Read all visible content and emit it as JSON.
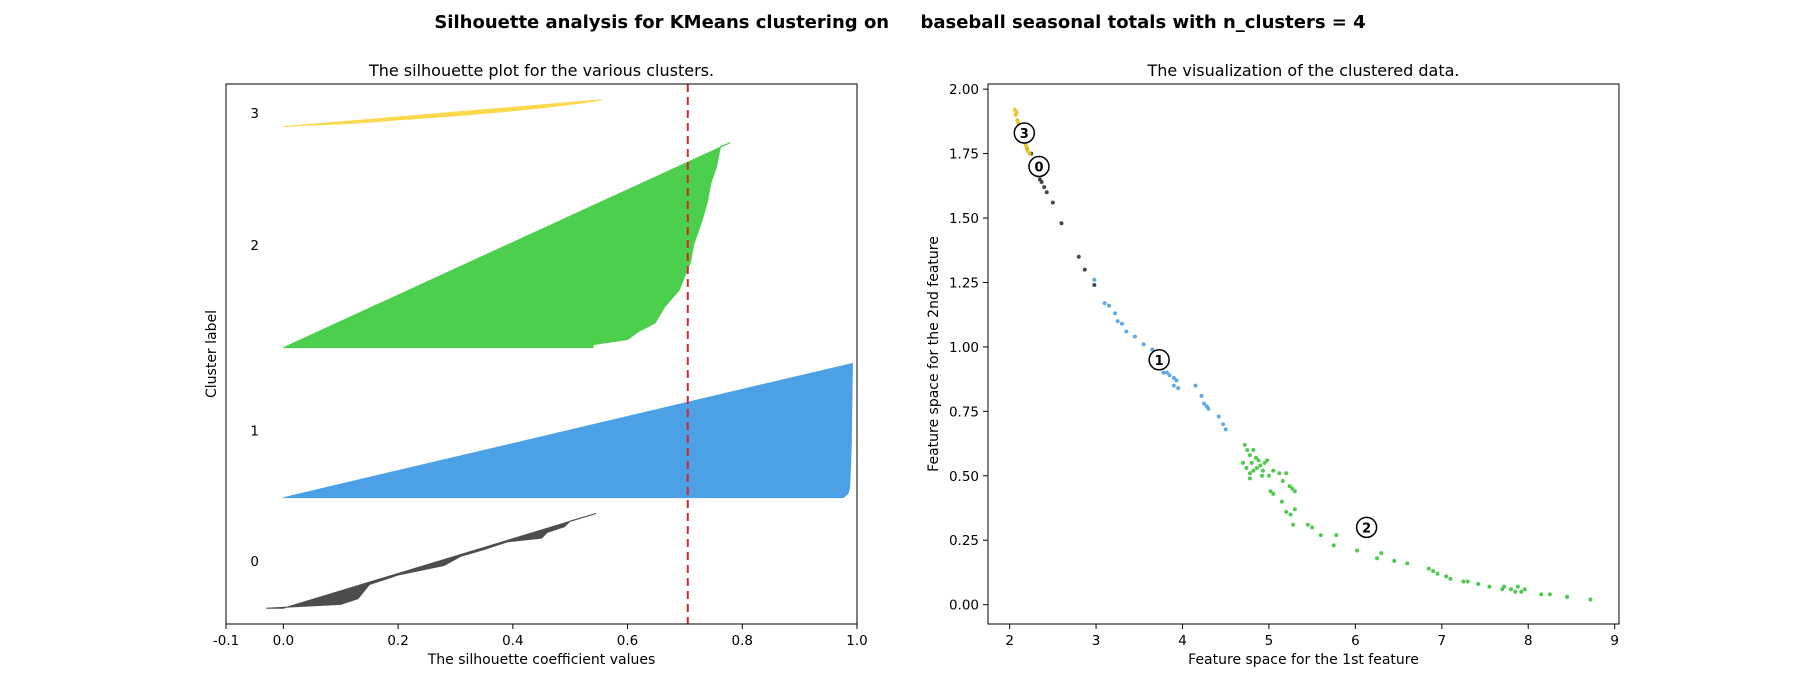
{
  "figure": {
    "suptitle": "Silhouette analysis for KMeans clustering on     baseball seasonal totals with n_clusters = 4"
  },
  "chart_data": [
    {
      "type": "area",
      "title": "The silhouette plot for the various clusters.",
      "xlabel": "The silhouette coefficient values",
      "ylabel": "Cluster label",
      "xlim": [
        -0.1,
        1.0
      ],
      "x_ticks": [
        "-0.1",
        "0.0",
        "0.2",
        "0.4",
        "0.6",
        "0.8",
        "1.0"
      ],
      "x_tick_values": [
        -0.1,
        0.0,
        0.2,
        0.4,
        0.6,
        0.8,
        1.0
      ],
      "y_ticks": "none",
      "average_silhouette_score": 0.705,
      "average_line_color": "#d62728",
      "clusters": [
        {
          "label": "0",
          "color": "#4d4d4d",
          "size": 60,
          "profile": [
            [
              0.0,
              0.545
            ],
            [
              0.08,
              0.5
            ],
            [
              0.14,
              0.49
            ],
            [
              0.2,
              0.46
            ],
            [
              0.26,
              0.45
            ],
            [
              0.3,
              0.39
            ],
            [
              0.38,
              0.35
            ],
            [
              0.45,
              0.31
            ],
            [
              0.55,
              0.28
            ],
            [
              0.65,
              0.2
            ],
            [
              0.75,
              0.15
            ],
            [
              0.9,
              0.13
            ],
            [
              0.96,
              0.1
            ],
            [
              0.985,
              0.02
            ],
            [
              1.0,
              -0.03
            ]
          ]
        },
        {
          "label": "1",
          "color": "#4ca0e6",
          "size": 85,
          "profile": [
            [
              0.0,
              0.992
            ],
            [
              0.6,
              0.99
            ],
            [
              0.85,
              0.988
            ],
            [
              0.93,
              0.987
            ],
            [
              0.97,
              0.984
            ],
            [
              1.0,
              0.976
            ]
          ]
        },
        {
          "label": "2",
          "color": "#4ccf4c",
          "size": 130,
          "profile": [
            [
              0.0,
              0.78
            ],
            [
              0.02,
              0.762
            ],
            [
              0.12,
              0.755
            ],
            [
              0.2,
              0.745
            ],
            [
              0.28,
              0.74
            ],
            [
              0.38,
              0.73
            ],
            [
              0.5,
              0.715
            ],
            [
              0.58,
              0.71
            ],
            [
              0.65,
              0.7
            ],
            [
              0.72,
              0.69
            ],
            [
              0.8,
              0.665
            ],
            [
              0.88,
              0.648
            ],
            [
              0.92,
              0.62
            ],
            [
              0.96,
              0.6
            ],
            [
              0.985,
              0.54
            ],
            [
              1.0,
              0.54
            ]
          ]
        },
        {
          "label": "3",
          "color": "#fcd84c",
          "size": 17,
          "profile": [
            [
              0.0,
              0.555
            ],
            [
              0.12,
              0.52
            ],
            [
              0.3,
              0.45
            ],
            [
              0.45,
              0.38
            ],
            [
              0.6,
              0.3
            ],
            [
              0.75,
              0.2
            ],
            [
              0.88,
              0.12
            ],
            [
              0.94,
              0.05
            ],
            [
              1.0,
              0.0
            ]
          ]
        }
      ]
    },
    {
      "type": "scatter",
      "title": "The visualization of the clustered data.",
      "xlabel": "Feature space for the 1st feature",
      "ylabel": "Feature space for the 2nd feature",
      "xlim": [
        1.75,
        9.05
      ],
      "ylim": [
        -0.075,
        2.02
      ],
      "x_ticks": [
        "2",
        "3",
        "4",
        "5",
        "6",
        "7",
        "8",
        "9"
      ],
      "x_tick_values": [
        2,
        3,
        4,
        5,
        6,
        7,
        8,
        9
      ],
      "y_ticks": [
        "0.00",
        "0.25",
        "0.50",
        "0.75",
        "1.00",
        "1.25",
        "1.50",
        "1.75",
        "2.00"
      ],
      "y_tick_values": [
        0.0,
        0.25,
        0.5,
        0.75,
        1.0,
        1.25,
        1.5,
        1.75,
        2.0
      ],
      "series": [
        {
          "cluster": "0",
          "color": "#333333",
          "points": [
            [
              2.25,
              1.75
            ],
            [
              2.28,
              1.72
            ],
            [
              2.32,
              1.68
            ],
            [
              2.35,
              1.65
            ],
            [
              2.4,
              1.62
            ],
            [
              2.43,
              1.6
            ],
            [
              2.5,
              1.56
            ],
            [
              2.6,
              1.48
            ],
            [
              2.8,
              1.35
            ],
            [
              2.87,
              1.3
            ],
            [
              2.98,
              1.24
            ],
            [
              2.2,
              1.77
            ],
            [
              2.37,
              1.64
            ]
          ]
        },
        {
          "cluster": "1",
          "color": "#4ca0e6",
          "points": [
            [
              2.98,
              1.26
            ],
            [
              3.1,
              1.17
            ],
            [
              3.15,
              1.16
            ],
            [
              3.22,
              1.13
            ],
            [
              3.25,
              1.1
            ],
            [
              3.3,
              1.09
            ],
            [
              3.35,
              1.06
            ],
            [
              3.45,
              1.04
            ],
            [
              3.55,
              1.01
            ],
            [
              3.65,
              0.99
            ],
            [
              3.7,
              0.96
            ],
            [
              3.75,
              0.93
            ],
            [
              3.78,
              0.9
            ],
            [
              3.82,
              0.9
            ],
            [
              3.85,
              0.89
            ],
            [
              3.9,
              0.88
            ],
            [
              3.93,
              0.87
            ],
            [
              3.9,
              0.85
            ],
            [
              3.95,
              0.84
            ],
            [
              4.15,
              0.85
            ],
            [
              4.22,
              0.81
            ],
            [
              4.25,
              0.78
            ],
            [
              4.28,
              0.77
            ],
            [
              4.3,
              0.76
            ],
            [
              4.42,
              0.73
            ],
            [
              4.47,
              0.7
            ],
            [
              4.5,
              0.68
            ]
          ]
        },
        {
          "cluster": "2",
          "color": "#3cc43c",
          "points": [
            [
              4.72,
              0.62
            ],
            [
              4.75,
              0.6
            ],
            [
              4.78,
              0.58
            ],
            [
              4.82,
              0.6
            ],
            [
              4.85,
              0.57
            ],
            [
              4.8,
              0.55
            ],
            [
              4.88,
              0.56
            ],
            [
              4.9,
              0.54
            ],
            [
              4.95,
              0.55
            ],
            [
              4.98,
              0.56
            ],
            [
              4.7,
              0.55
            ],
            [
              4.74,
              0.53
            ],
            [
              4.78,
              0.51
            ],
            [
              4.82,
              0.52
            ],
            [
              4.86,
              0.53
            ],
            [
              4.93,
              0.52
            ],
            [
              5.0,
              0.5
            ],
            [
              5.05,
              0.52
            ],
            [
              5.12,
              0.51
            ],
            [
              5.16,
              0.48
            ],
            [
              5.2,
              0.51
            ],
            [
              5.24,
              0.46
            ],
            [
              5.27,
              0.45
            ],
            [
              5.3,
              0.44
            ],
            [
              4.78,
              0.49
            ],
            [
              4.92,
              0.5
            ],
            [
              5.02,
              0.44
            ],
            [
              5.05,
              0.43
            ],
            [
              5.15,
              0.4
            ],
            [
              5.2,
              0.36
            ],
            [
              5.25,
              0.35
            ],
            [
              5.3,
              0.37
            ],
            [
              5.28,
              0.31
            ],
            [
              5.45,
              0.31
            ],
            [
              5.5,
              0.3
            ],
            [
              5.6,
              0.27
            ],
            [
              5.75,
              0.23
            ],
            [
              5.78,
              0.27
            ],
            [
              6.02,
              0.21
            ],
            [
              6.25,
              0.18
            ],
            [
              6.3,
              0.2
            ],
            [
              6.45,
              0.17
            ],
            [
              6.6,
              0.16
            ],
            [
              6.85,
              0.14
            ],
            [
              6.9,
              0.13
            ],
            [
              6.95,
              0.12
            ],
            [
              7.05,
              0.11
            ],
            [
              7.1,
              0.1
            ],
            [
              7.25,
              0.09
            ],
            [
              7.3,
              0.09
            ],
            [
              7.42,
              0.08
            ],
            [
              7.55,
              0.07
            ],
            [
              7.7,
              0.06
            ],
            [
              7.72,
              0.07
            ],
            [
              7.8,
              0.06
            ],
            [
              7.85,
              0.05
            ],
            [
              7.88,
              0.07
            ],
            [
              7.92,
              0.05
            ],
            [
              7.96,
              0.06
            ],
            [
              8.15,
              0.04
            ],
            [
              8.25,
              0.04
            ],
            [
              8.45,
              0.03
            ],
            [
              8.72,
              0.02
            ]
          ]
        },
        {
          "cluster": "3",
          "color": "#e6c21c",
          "points": [
            [
              2.06,
              1.92
            ],
            [
              2.07,
              1.9
            ],
            [
              2.09,
              1.88
            ],
            [
              2.11,
              1.86
            ],
            [
              2.13,
              1.84
            ],
            [
              2.15,
              1.82
            ],
            [
              2.17,
              1.8
            ],
            [
              2.19,
              1.78
            ],
            [
              2.08,
              1.91
            ],
            [
              2.1,
              1.87
            ],
            [
              2.12,
              1.85
            ],
            [
              2.14,
              1.83
            ],
            [
              2.16,
              1.81
            ],
            [
              2.18,
              1.79
            ],
            [
              2.2,
              1.77
            ],
            [
              2.21,
              1.76
            ],
            [
              2.23,
              1.75
            ]
          ]
        }
      ],
      "centers": [
        {
          "label": "0",
          "x": 2.34,
          "y": 1.7
        },
        {
          "label": "1",
          "x": 3.73,
          "y": 0.95
        },
        {
          "label": "2",
          "x": 6.13,
          "y": 0.3
        },
        {
          "label": "3",
          "x": 2.17,
          "y": 1.83
        }
      ]
    }
  ]
}
